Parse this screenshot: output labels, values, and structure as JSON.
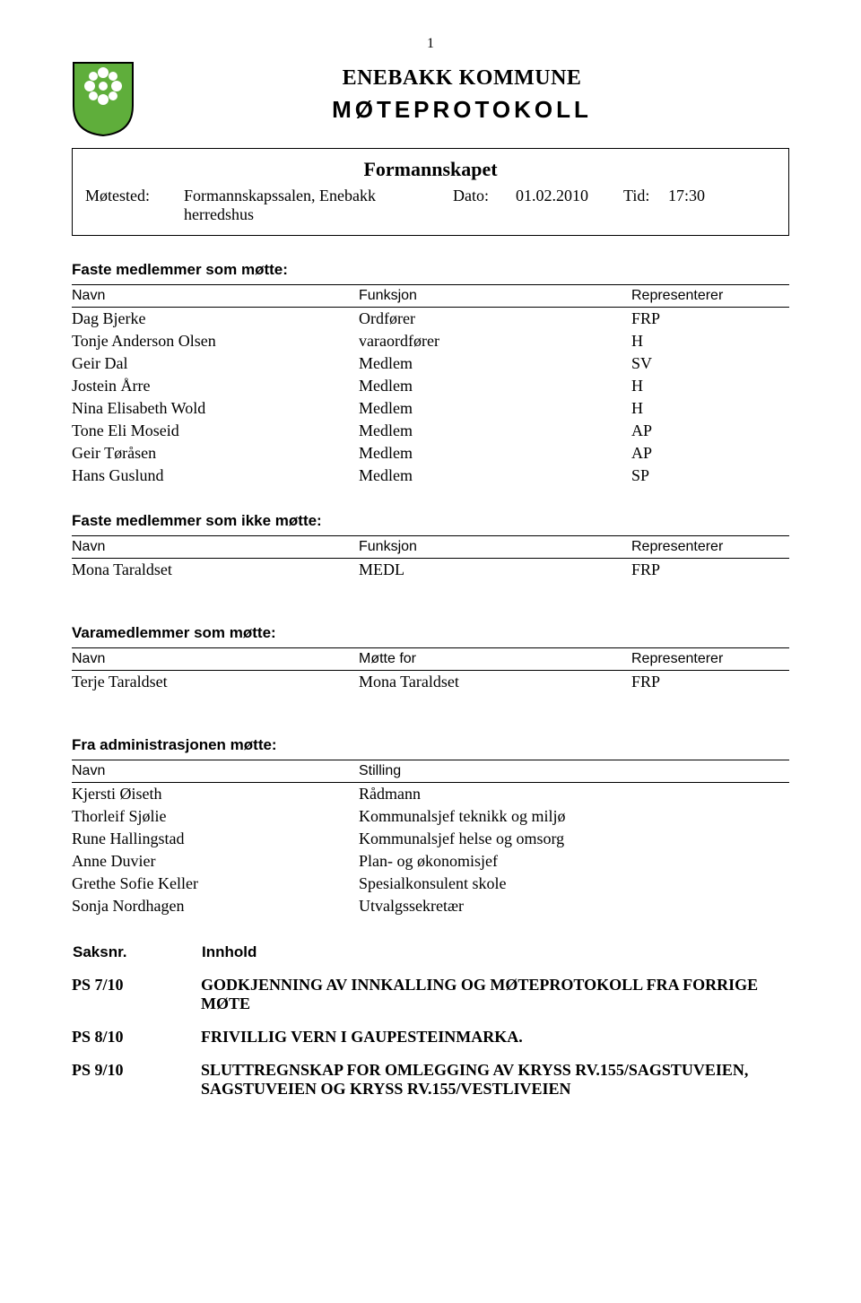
{
  "page_number_top": "1",
  "header": {
    "kommune": "ENEBAKK KOMMUNE",
    "protokoll": "MØTEPROTOKOLL"
  },
  "meeting_box": {
    "title": "Formannskapet",
    "motested_label": "Møtested:",
    "venue_line1": "Formannskapssalen, Enebakk",
    "venue_line2": "herredshus",
    "dato_label": "Dato:",
    "dato_value": "01.02.2010",
    "tid_label": "Tid:",
    "tid_value": "17:30"
  },
  "colors": {
    "text": "#000000",
    "background": "#ffffff",
    "logo_green": "#5fae3b",
    "logo_border": "#000000",
    "logo_flower": "#ffffff"
  },
  "present_members": {
    "heading": "Faste medlemmer som møtte:",
    "columns": [
      "Navn",
      "Funksjon",
      "Representerer"
    ],
    "rows": [
      [
        "Dag Bjerke",
        "Ordfører",
        "FRP"
      ],
      [
        "Tonje Anderson Olsen",
        "varaordfører",
        "H"
      ],
      [
        "Geir Dal",
        "Medlem",
        "SV"
      ],
      [
        "Jostein Årre",
        "Medlem",
        "H"
      ],
      [
        "Nina Elisabeth Wold",
        "Medlem",
        "H"
      ],
      [
        "Tone Eli Moseid",
        "Medlem",
        "AP"
      ],
      [
        "Geir Tøråsen",
        "Medlem",
        "AP"
      ],
      [
        "Hans Guslund",
        "Medlem",
        "SP"
      ]
    ]
  },
  "absent_members": {
    "heading": "Faste medlemmer som ikke møtte:",
    "columns": [
      "Navn",
      "Funksjon",
      "Representerer"
    ],
    "rows": [
      [
        "Mona Taraldset",
        "MEDL",
        "FRP"
      ]
    ]
  },
  "deputies": {
    "heading": "Varamedlemmer som møtte:",
    "columns": [
      "Navn",
      "Møtte for",
      "Representerer"
    ],
    "rows": [
      [
        "Terje Taraldset",
        "Mona Taraldset",
        "FRP"
      ]
    ]
  },
  "administration": {
    "heading": "Fra administrasjonen møtte:",
    "columns": [
      "Navn",
      "Stilling"
    ],
    "rows": [
      [
        "Kjersti Øiseth",
        "Rådmann"
      ],
      [
        "Thorleif Sjølie",
        "Kommunalsjef teknikk og miljø"
      ],
      [
        "Rune Hallingstad",
        "Kommunalsjef helse og omsorg"
      ],
      [
        "Anne Duvier",
        "Plan- og økonomisjef"
      ],
      [
        "Grethe Sofie Keller",
        "Spesialkonsulent skole"
      ],
      [
        "Sonja Nordhagen",
        "Utvalgssekretær"
      ]
    ]
  },
  "cases": {
    "columns": [
      "Saksnr.",
      "Innhold"
    ],
    "rows": [
      [
        "PS 7/10",
        "GODKJENNING AV INNKALLING OG MØTEPROTOKOLL FRA FORRIGE MØTE"
      ],
      [
        "PS 8/10",
        "FRIVILLIG VERN I GAUPESTEINMARKA."
      ],
      [
        "PS 9/10",
        "SLUTTREGNSKAP FOR OMLEGGING AV KRYSS RV.155/SAGSTUVEIEN, SAGSTUVEIEN OG KRYSS RV.155/VESTLIVEIEN"
      ]
    ]
  }
}
